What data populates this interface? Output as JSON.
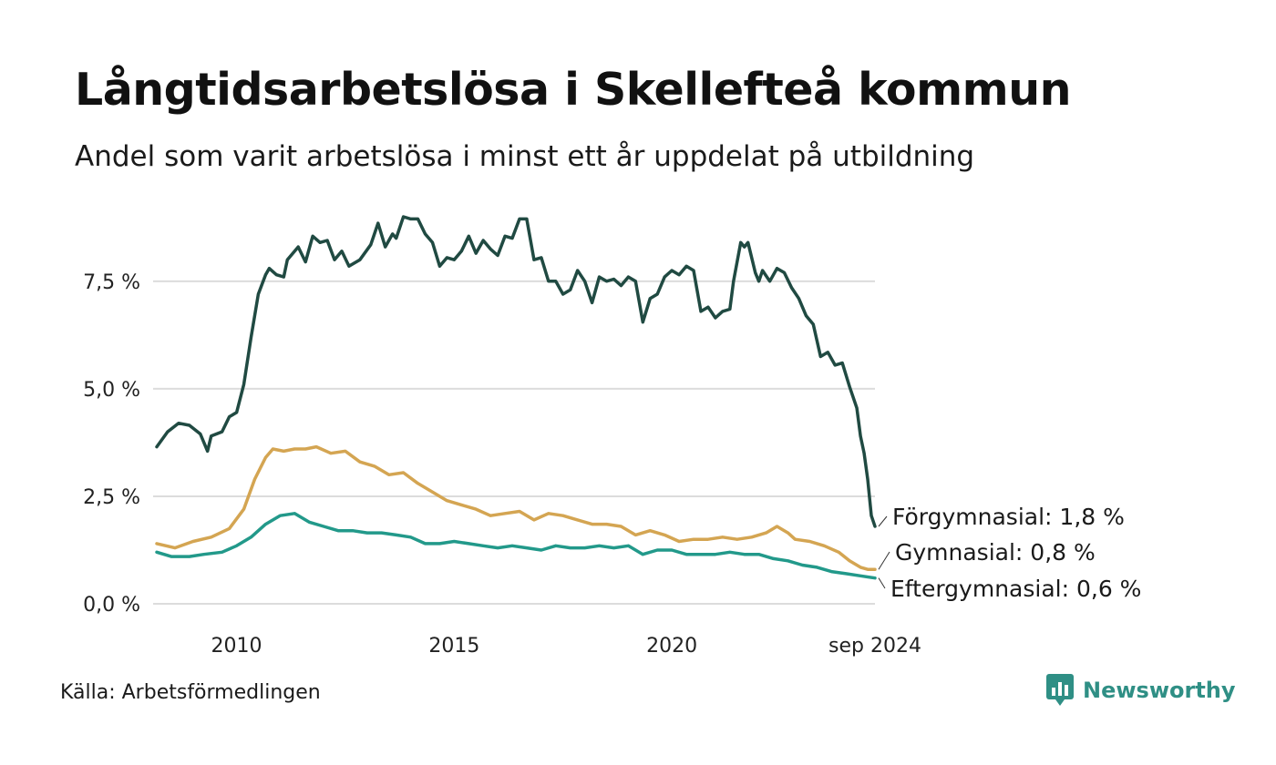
{
  "title": "Långtidsarbetslösa i Skellefteå kommun",
  "subtitle": "Andel som varit arbetslösa i minst ett år uppdelat på utbildning",
  "source": "Källa: Arbetsförmedlingen",
  "brand": {
    "name": "Newsworthy",
    "icon": "newsworthy-logo-icon",
    "color": "#2f8f85"
  },
  "chart_data": {
    "type": "line",
    "title": "Långtidsarbetslösa i Skellefteå kommun",
    "subtitle": "Andel som varit arbetslösa i minst ett år uppdelat på utbildning",
    "x_range": [
      "2008-03",
      "2024-09"
    ],
    "x_ticks": [
      {
        "date": "2010-01",
        "label": "2010"
      },
      {
        "date": "2015-01",
        "label": "2015"
      },
      {
        "date": "2020-01",
        "label": "2020"
      },
      {
        "date": "2024-09",
        "label": "sep 2024"
      }
    ],
    "ylim": [
      0,
      9
    ],
    "y_ticks": [
      {
        "value": 0,
        "label": "0,0 %"
      },
      {
        "value": 2.5,
        "label": "2,5 %"
      },
      {
        "value": 5,
        "label": "5,0 %"
      },
      {
        "value": 7.5,
        "label": "7,5 %"
      }
    ],
    "grid": true,
    "legend": "direct labels at line ends (right)",
    "series": [
      {
        "name": "Förgymnasial",
        "end_label": "Förgymnasial: 1,8 %",
        "color": "#204a42",
        "points": [
          [
            "2008-03",
            3.65
          ],
          [
            "2008-06",
            4.0
          ],
          [
            "2008-09",
            4.2
          ],
          [
            "2008-12",
            4.15
          ],
          [
            "2009-03",
            3.95
          ],
          [
            "2009-05",
            3.55
          ],
          [
            "2009-06",
            3.9
          ],
          [
            "2009-09",
            4.0
          ],
          [
            "2009-11",
            4.35
          ],
          [
            "2010-01",
            4.45
          ],
          [
            "2010-03",
            5.1
          ],
          [
            "2010-05",
            6.2
          ],
          [
            "2010-07",
            7.2
          ],
          [
            "2010-09",
            7.65
          ],
          [
            "2010-10",
            7.8
          ],
          [
            "2010-12",
            7.65
          ],
          [
            "2011-02",
            7.6
          ],
          [
            "2011-03",
            8.0
          ],
          [
            "2011-06",
            8.3
          ],
          [
            "2011-08",
            7.95
          ],
          [
            "2011-10",
            8.55
          ],
          [
            "2011-12",
            8.4
          ],
          [
            "2012-02",
            8.45
          ],
          [
            "2012-04",
            8.0
          ],
          [
            "2012-06",
            8.2
          ],
          [
            "2012-08",
            7.85
          ],
          [
            "2012-11",
            8.0
          ],
          [
            "2013-02",
            8.35
          ],
          [
            "2013-04",
            8.85
          ],
          [
            "2013-06",
            8.3
          ],
          [
            "2013-08",
            8.6
          ],
          [
            "2013-09",
            8.5
          ],
          [
            "2013-11",
            9.0
          ],
          [
            "2014-01",
            8.95
          ],
          [
            "2014-03",
            8.95
          ],
          [
            "2014-05",
            8.6
          ],
          [
            "2014-07",
            8.4
          ],
          [
            "2014-09",
            7.85
          ],
          [
            "2014-11",
            8.05
          ],
          [
            "2015-01",
            8.0
          ],
          [
            "2015-03",
            8.2
          ],
          [
            "2015-05",
            8.55
          ],
          [
            "2015-07",
            8.15
          ],
          [
            "2015-09",
            8.45
          ],
          [
            "2015-11",
            8.25
          ],
          [
            "2016-01",
            8.1
          ],
          [
            "2016-03",
            8.55
          ],
          [
            "2016-05",
            8.5
          ],
          [
            "2016-07",
            8.95
          ],
          [
            "2016-09",
            8.95
          ],
          [
            "2016-11",
            8.0
          ],
          [
            "2017-01",
            8.05
          ],
          [
            "2017-03",
            7.5
          ],
          [
            "2017-05",
            7.5
          ],
          [
            "2017-07",
            7.2
          ],
          [
            "2017-09",
            7.3
          ],
          [
            "2017-11",
            7.75
          ],
          [
            "2018-01",
            7.5
          ],
          [
            "2018-03",
            7.0
          ],
          [
            "2018-05",
            7.6
          ],
          [
            "2018-07",
            7.5
          ],
          [
            "2018-09",
            7.55
          ],
          [
            "2018-11",
            7.4
          ],
          [
            "2019-01",
            7.6
          ],
          [
            "2019-03",
            7.5
          ],
          [
            "2019-05",
            6.55
          ],
          [
            "2019-07",
            7.1
          ],
          [
            "2019-09",
            7.2
          ],
          [
            "2019-11",
            7.6
          ],
          [
            "2020-01",
            7.75
          ],
          [
            "2020-03",
            7.65
          ],
          [
            "2020-05",
            7.85
          ],
          [
            "2020-07",
            7.75
          ],
          [
            "2020-09",
            6.8
          ],
          [
            "2020-11",
            6.9
          ],
          [
            "2021-01",
            6.65
          ],
          [
            "2021-03",
            6.8
          ],
          [
            "2021-05",
            6.85
          ],
          [
            "2021-06",
            7.5
          ],
          [
            "2021-08",
            8.4
          ],
          [
            "2021-09",
            8.3
          ],
          [
            "2021-10",
            8.4
          ],
          [
            "2021-12",
            7.7
          ],
          [
            "2022-01",
            7.5
          ],
          [
            "2022-02",
            7.75
          ],
          [
            "2022-04",
            7.5
          ],
          [
            "2022-06",
            7.8
          ],
          [
            "2022-08",
            7.7
          ],
          [
            "2022-10",
            7.35
          ],
          [
            "2022-12",
            7.1
          ],
          [
            "2023-02",
            6.7
          ],
          [
            "2023-04",
            6.5
          ],
          [
            "2023-06",
            5.75
          ],
          [
            "2023-08",
            5.85
          ],
          [
            "2023-10",
            5.55
          ],
          [
            "2023-12",
            5.6
          ],
          [
            "2024-02",
            5.05
          ],
          [
            "2024-04",
            4.55
          ],
          [
            "2024-05",
            3.9
          ],
          [
            "2024-06",
            3.5
          ],
          [
            "2024-07",
            2.9
          ],
          [
            "2024-08",
            2.05
          ],
          [
            "2024-09",
            1.8
          ]
        ]
      },
      {
        "name": "Gymnasial",
        "end_label": "Gymnasial: 0,8 %",
        "color": "#d4a552",
        "points": [
          [
            "2008-03",
            1.4
          ],
          [
            "2008-08",
            1.3
          ],
          [
            "2009-01",
            1.45
          ],
          [
            "2009-06",
            1.55
          ],
          [
            "2009-11",
            1.75
          ],
          [
            "2010-03",
            2.2
          ],
          [
            "2010-06",
            2.9
          ],
          [
            "2010-09",
            3.4
          ],
          [
            "2010-11",
            3.6
          ],
          [
            "2011-02",
            3.55
          ],
          [
            "2011-05",
            3.6
          ],
          [
            "2011-08",
            3.6
          ],
          [
            "2011-11",
            3.65
          ],
          [
            "2012-03",
            3.5
          ],
          [
            "2012-07",
            3.55
          ],
          [
            "2012-11",
            3.3
          ],
          [
            "2013-03",
            3.2
          ],
          [
            "2013-07",
            3.0
          ],
          [
            "2013-11",
            3.05
          ],
          [
            "2014-03",
            2.8
          ],
          [
            "2014-07",
            2.6
          ],
          [
            "2014-11",
            2.4
          ],
          [
            "2015-03",
            2.3
          ],
          [
            "2015-07",
            2.2
          ],
          [
            "2015-11",
            2.05
          ],
          [
            "2016-03",
            2.1
          ],
          [
            "2016-07",
            2.15
          ],
          [
            "2016-11",
            1.95
          ],
          [
            "2017-03",
            2.1
          ],
          [
            "2017-07",
            2.05
          ],
          [
            "2017-11",
            1.95
          ],
          [
            "2018-03",
            1.85
          ],
          [
            "2018-07",
            1.85
          ],
          [
            "2018-11",
            1.8
          ],
          [
            "2019-03",
            1.6
          ],
          [
            "2019-07",
            1.7
          ],
          [
            "2019-11",
            1.6
          ],
          [
            "2020-03",
            1.45
          ],
          [
            "2020-07",
            1.5
          ],
          [
            "2020-11",
            1.5
          ],
          [
            "2021-03",
            1.55
          ],
          [
            "2021-07",
            1.5
          ],
          [
            "2021-11",
            1.55
          ],
          [
            "2022-03",
            1.65
          ],
          [
            "2022-06",
            1.8
          ],
          [
            "2022-09",
            1.65
          ],
          [
            "2022-11",
            1.5
          ],
          [
            "2023-03",
            1.45
          ],
          [
            "2023-07",
            1.35
          ],
          [
            "2023-11",
            1.2
          ],
          [
            "2024-02",
            1.0
          ],
          [
            "2024-05",
            0.85
          ],
          [
            "2024-07",
            0.8
          ],
          [
            "2024-09",
            0.8
          ]
        ]
      },
      {
        "name": "Eftergymnasial",
        "end_label": "Eftergymnasial: 0,6 %",
        "color": "#22998a",
        "points": [
          [
            "2008-03",
            1.2
          ],
          [
            "2008-07",
            1.1
          ],
          [
            "2008-12",
            1.1
          ],
          [
            "2009-04",
            1.15
          ],
          [
            "2009-09",
            1.2
          ],
          [
            "2010-01",
            1.35
          ],
          [
            "2010-05",
            1.55
          ],
          [
            "2010-09",
            1.85
          ],
          [
            "2011-01",
            2.05
          ],
          [
            "2011-05",
            2.1
          ],
          [
            "2011-09",
            1.9
          ],
          [
            "2012-01",
            1.8
          ],
          [
            "2012-05",
            1.7
          ],
          [
            "2012-09",
            1.7
          ],
          [
            "2013-01",
            1.65
          ],
          [
            "2013-05",
            1.65
          ],
          [
            "2013-09",
            1.6
          ],
          [
            "2014-01",
            1.55
          ],
          [
            "2014-05",
            1.4
          ],
          [
            "2014-09",
            1.4
          ],
          [
            "2015-01",
            1.45
          ],
          [
            "2015-05",
            1.4
          ],
          [
            "2015-09",
            1.35
          ],
          [
            "2016-01",
            1.3
          ],
          [
            "2016-05",
            1.35
          ],
          [
            "2016-09",
            1.3
          ],
          [
            "2017-01",
            1.25
          ],
          [
            "2017-05",
            1.35
          ],
          [
            "2017-09",
            1.3
          ],
          [
            "2018-01",
            1.3
          ],
          [
            "2018-05",
            1.35
          ],
          [
            "2018-09",
            1.3
          ],
          [
            "2019-01",
            1.35
          ],
          [
            "2019-05",
            1.15
          ],
          [
            "2019-09",
            1.25
          ],
          [
            "2020-01",
            1.25
          ],
          [
            "2020-05",
            1.15
          ],
          [
            "2020-09",
            1.15
          ],
          [
            "2021-01",
            1.15
          ],
          [
            "2021-05",
            1.2
          ],
          [
            "2021-09",
            1.15
          ],
          [
            "2022-01",
            1.15
          ],
          [
            "2022-05",
            1.05
          ],
          [
            "2022-09",
            1.0
          ],
          [
            "2023-01",
            0.9
          ],
          [
            "2023-05",
            0.85
          ],
          [
            "2023-09",
            0.75
          ],
          [
            "2024-01",
            0.7
          ],
          [
            "2024-05",
            0.65
          ],
          [
            "2024-09",
            0.6
          ]
        ]
      }
    ]
  }
}
